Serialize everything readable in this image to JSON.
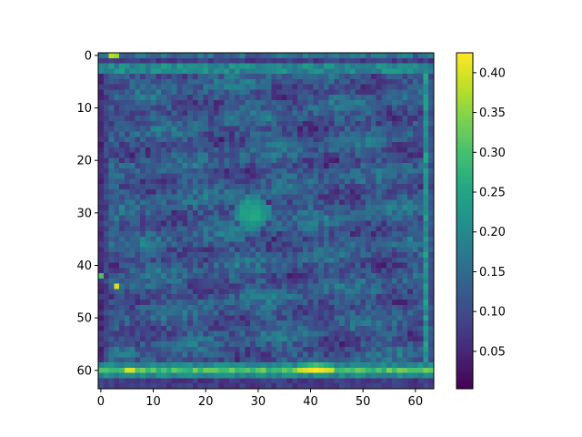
{
  "chart_data": {
    "type": "heatmap",
    "title": "",
    "xlabel": "",
    "ylabel": "",
    "grid_size": [
      64,
      64
    ],
    "xlim": [
      -0.5,
      63.5
    ],
    "ylim": [
      63.5,
      -0.5
    ],
    "x_ticks": [
      0,
      10,
      20,
      30,
      40,
      50,
      60
    ],
    "y_ticks": [
      0,
      10,
      20,
      30,
      40,
      50,
      60
    ],
    "colormap": "viridis",
    "colorbar": {
      "range": [
        0.003,
        0.425
      ],
      "ticks": [
        0.05,
        0.1,
        0.15,
        0.2,
        0.25,
        0.3,
        0.35,
        0.4
      ],
      "tick_labels": [
        "0.05",
        "0.10",
        "0.15",
        "0.20",
        "0.25",
        "0.30",
        "0.35",
        "0.40"
      ]
    },
    "features": {
      "background_level": 0.12,
      "top_bright_row": 0,
      "bottom_bright_row": 60,
      "bottom_bright_value": 0.3,
      "hotspot_center": [
        41,
        60
      ],
      "hotspot_value": 0.425,
      "left_edge_dark_column": 0,
      "right_edge_bright_column": 62,
      "central_blob_center": [
        29,
        30
      ],
      "central_blob_value": 0.24
    }
  },
  "colors": {
    "viridis_low": "#440154",
    "viridis_mid": "#21918c",
    "viridis_high": "#fde725",
    "axis": "#000000"
  }
}
